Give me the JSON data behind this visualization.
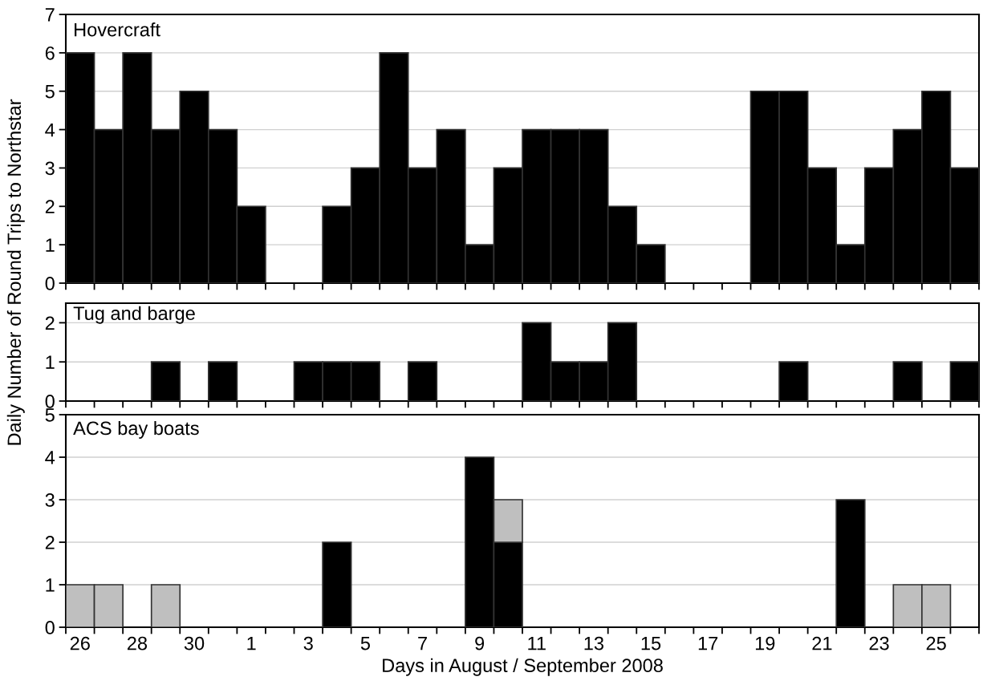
{
  "chart_data": [
    {
      "type": "bar",
      "title": "Hovercraft",
      "categories": [
        "26",
        null,
        "28",
        null,
        "30",
        null,
        "1",
        null,
        "3",
        null,
        "5",
        null,
        "7",
        null,
        "9",
        null,
        "11",
        null,
        "13",
        null,
        "15",
        null,
        "17",
        null,
        "19",
        null,
        "21",
        null,
        "23",
        null,
        "25",
        null
      ],
      "series": [
        {
          "color": "#000000",
          "values": [
            6,
            4,
            6,
            4,
            5,
            4,
            2,
            0,
            0,
            2,
            3,
            6,
            3,
            4,
            1,
            3,
            4,
            4,
            4,
            2,
            1,
            0,
            0,
            0,
            5,
            5,
            3,
            1,
            3,
            4,
            5,
            3
          ]
        }
      ],
      "ylim": [
        0,
        7
      ],
      "yticks": [
        0,
        1,
        2,
        3,
        4,
        5,
        6,
        7
      ],
      "grid": "y",
      "tick_labels": "y"
    },
    {
      "type": "bar",
      "title": "Tug and barge",
      "ylabel": "Daily Number of Round Trips to Northstar",
      "categories": [
        "26",
        null,
        "28",
        null,
        "30",
        null,
        "1",
        null,
        "3",
        null,
        "5",
        null,
        "7",
        null,
        "9",
        null,
        "11",
        null,
        "13",
        null,
        "15",
        null,
        "17",
        null,
        "19",
        null,
        "21",
        null,
        "23",
        null,
        "25",
        null
      ],
      "series": [
        {
          "color": "#000000",
          "values": [
            0,
            0,
            0,
            1,
            0,
            1,
            0,
            0,
            1,
            1,
            1,
            0,
            1,
            0,
            0,
            0,
            2,
            1,
            1,
            2,
            0,
            0,
            0,
            0,
            0,
            1,
            0,
            0,
            0,
            1,
            0,
            1
          ]
        }
      ],
      "ylim": [
        0,
        2.5
      ],
      "yticks": [
        0,
        1,
        2
      ],
      "grid": "y",
      "tick_labels": "y"
    },
    {
      "type": "bar",
      "title": "ACS bay boats",
      "xlabel": "Days in August / September 2008",
      "stacked": true,
      "categories": [
        "26",
        null,
        "28",
        null,
        "30",
        null,
        "1",
        null,
        "3",
        null,
        "5",
        null,
        "7",
        null,
        "9",
        null,
        "11",
        null,
        "13",
        null,
        "15",
        null,
        "17",
        null,
        "19",
        null,
        "21",
        null,
        "23",
        null,
        "25",
        null
      ],
      "series": [
        {
          "color": "#000000",
          "values": [
            0,
            0,
            0,
            0,
            0,
            0,
            0,
            0,
            0,
            2,
            0,
            0,
            0,
            0,
            4,
            2,
            0,
            0,
            0,
            0,
            0,
            0,
            0,
            0,
            0,
            0,
            0,
            3,
            0,
            0,
            0,
            0
          ]
        },
        {
          "color": "#bfbfbf",
          "values": [
            1,
            1,
            0,
            1,
            0,
            0,
            0,
            0,
            0,
            0,
            0,
            0,
            0,
            0,
            0,
            1,
            0,
            0,
            0,
            0,
            0,
            0,
            0,
            0,
            0,
            0,
            0,
            0,
            0,
            1,
            1,
            0
          ]
        }
      ],
      "ylim": [
        0,
        5
      ],
      "yticks": [
        0,
        1,
        2,
        3,
        4,
        5
      ],
      "grid": "y"
    }
  ]
}
